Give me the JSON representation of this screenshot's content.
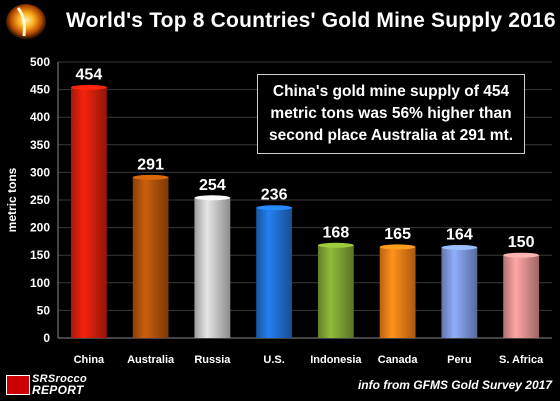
{
  "header": {
    "title": "World's Top 8 Countries' Gold Mine Supply 2016"
  },
  "note": {
    "lines": [
      "China's gold mine supply of 454",
      "metric tons was 56% higher than",
      "second place Australia at 291 mt."
    ]
  },
  "footer": {
    "source": "info from GFMS Gold Survey 2017",
    "brand_line_1": "SRSrocco",
    "brand_line_2": "REPORT"
  },
  "chart_data": {
    "type": "bar",
    "categories": [
      "China",
      "Australia",
      "Russia",
      "U.S.",
      "Indonesia",
      "Canada",
      "Peru",
      "S. Africa"
    ],
    "values": [
      454,
      291,
      254,
      236,
      168,
      165,
      164,
      150
    ],
    "title": "World's Top 8 Countries' Gold Mine Supply 2016",
    "xlabel": "",
    "ylabel": "metric tons",
    "ylim": [
      0,
      500
    ],
    "yticks": [
      0,
      50,
      100,
      150,
      200,
      250,
      300,
      350,
      400,
      450,
      500
    ],
    "grid": true,
    "legend": "none",
    "bar_colors": [
      "#d41e0c",
      "#b0530a",
      "#c8c8c8",
      "#1f6fd1",
      "#7ea332",
      "#ee7e18",
      "#7c98dc",
      "#e39090"
    ]
  },
  "colors": {
    "background": "#000000",
    "text": "#ffffff",
    "grid": "#3a3a3a"
  }
}
